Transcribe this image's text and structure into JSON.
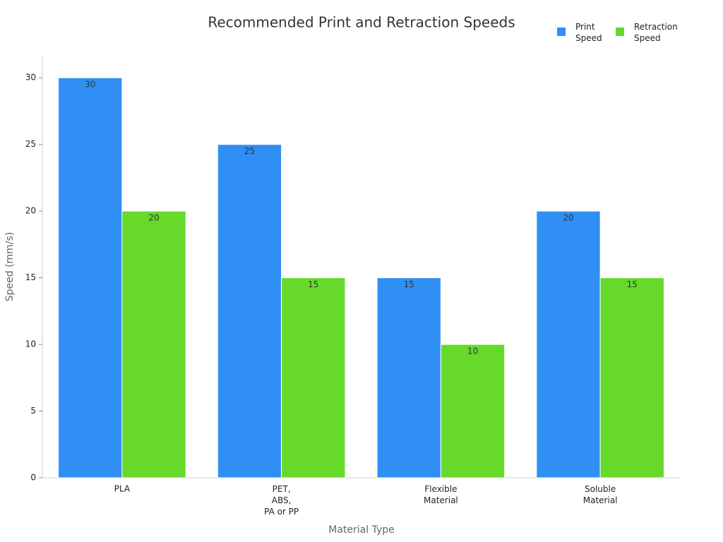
{
  "chart_data": {
    "type": "bar",
    "title": "Recommended Print and Retraction Speeds",
    "x_label": "Material Type",
    "y_label": "Speed (mm/s)",
    "categories": [
      "PLA",
      "PET,\nABS,\nPA or PP",
      "Flexible\nMaterial",
      "Soluble\nMaterial"
    ],
    "series": [
      {
        "name": "Print\nSpeed",
        "color": "#2f8ff5",
        "values": [
          30,
          25,
          15,
          20
        ]
      },
      {
        "name": "Retraction\nSpeed",
        "color": "#66d92a",
        "values": [
          20,
          15,
          10,
          15
        ]
      }
    ],
    "ylim": [
      0,
      31.6
    ],
    "yticks": [
      0,
      5,
      10,
      15,
      20,
      25,
      30
    ],
    "legend": "top-right"
  }
}
